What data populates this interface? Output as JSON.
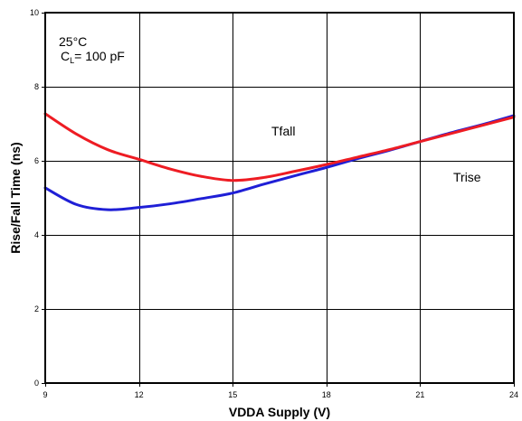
{
  "chart_data": {
    "type": "line",
    "title": "",
    "xlabel": "VDDA Supply (V)",
    "ylabel": "Rise/Fall Time (ns)",
    "xlim": [
      9,
      24
    ],
    "ylim": [
      0,
      10
    ],
    "xticks": [
      9,
      12,
      15,
      18,
      21,
      24
    ],
    "yticks": [
      0,
      2,
      4,
      6,
      8,
      10
    ],
    "grid": true,
    "series": [
      {
        "name": "Tfall",
        "color": "#ee1c23",
        "x": [
          9,
          10,
          11,
          12,
          13,
          14,
          15,
          16,
          17,
          18,
          19,
          20,
          21,
          22,
          23,
          24
        ],
        "y": [
          7.27,
          6.72,
          6.3,
          6.04,
          5.78,
          5.58,
          5.47,
          5.55,
          5.72,
          5.9,
          6.1,
          6.3,
          6.52,
          6.74,
          6.96,
          7.18
        ]
      },
      {
        "name": "Trise",
        "color": "#1f1fd6",
        "x": [
          9,
          10,
          11,
          12,
          13,
          14,
          15,
          16,
          17,
          18,
          19,
          20,
          21,
          22,
          23,
          24
        ],
        "y": [
          5.27,
          4.82,
          4.68,
          4.74,
          4.84,
          4.98,
          5.13,
          5.37,
          5.6,
          5.82,
          6.06,
          6.28,
          6.52,
          6.76,
          6.98,
          7.22
        ]
      }
    ],
    "annotations": [
      {
        "text": "25°C"
      },
      {
        "text_main": "C",
        "text_sub": "L",
        "text_rest": "= 100 pF"
      },
      {
        "text": "Tfall"
      },
      {
        "text": "Trise"
      }
    ]
  }
}
